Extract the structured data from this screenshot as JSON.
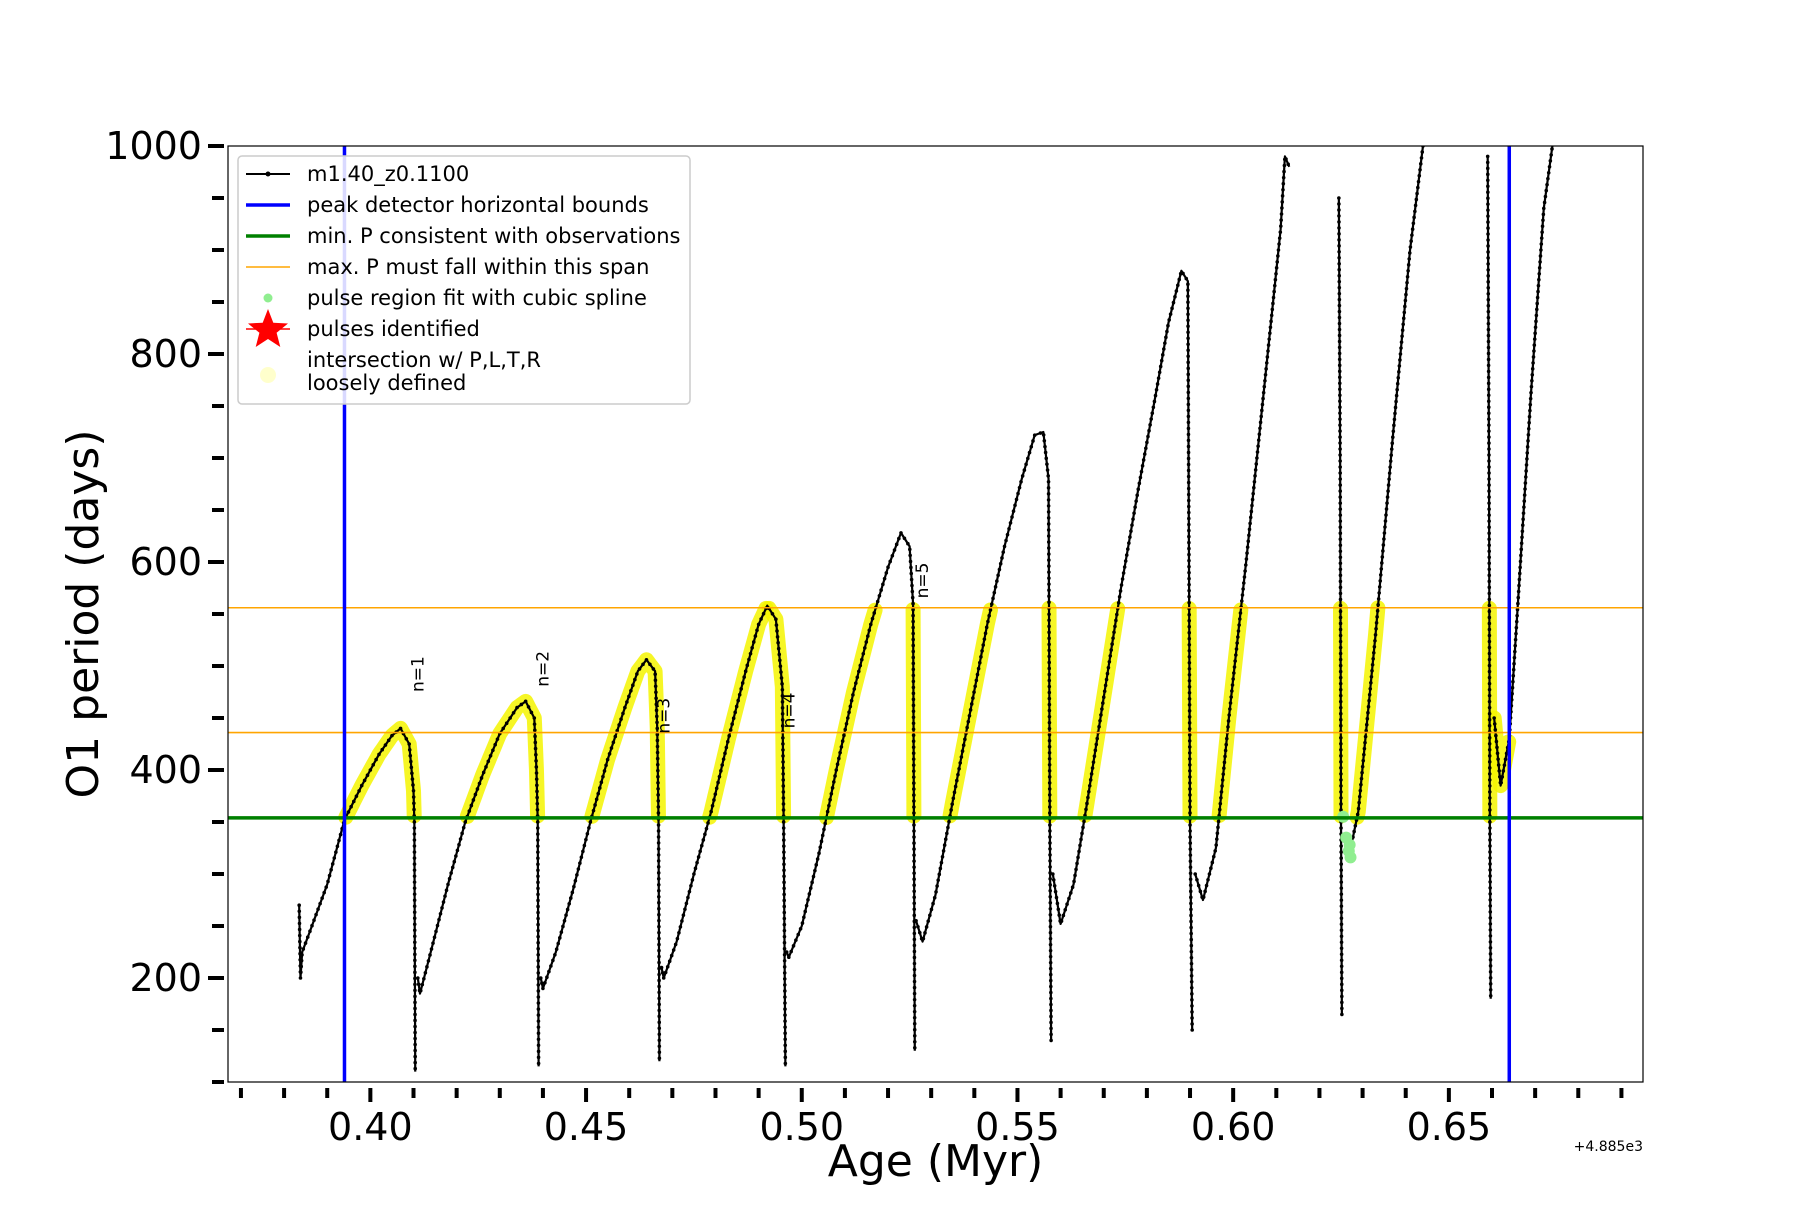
{
  "chart_data": {
    "type": "line",
    "xlabel": "Age (Myr)",
    "ylabel": "O1 period (days)",
    "x_offset_label": "+4.885e3",
    "xlim": [
      0.367,
      0.695
    ],
    "ylim": [
      100,
      1000
    ],
    "xticks": [
      {
        "value": 0.4,
        "label": "0.40"
      },
      {
        "value": 0.45,
        "label": "0.45"
      },
      {
        "value": 0.5,
        "label": "0.50"
      },
      {
        "value": 0.55,
        "label": "0.55"
      },
      {
        "value": 0.6,
        "label": "0.60"
      },
      {
        "value": 0.65,
        "label": "0.65"
      }
    ],
    "yticks": [
      {
        "value": 200,
        "label": "200"
      },
      {
        "value": 400,
        "label": "400"
      },
      {
        "value": 600,
        "label": "600"
      },
      {
        "value": 800,
        "label": "800"
      },
      {
        "value": 1000,
        "label": "1000"
      }
    ],
    "legend_position": "top-left",
    "legend": [
      {
        "label": "m1.40_z0.1100",
        "style": "line-dot",
        "color": "#000000"
      },
      {
        "label": "peak detector horizontal bounds",
        "style": "line",
        "color": "#0000ff"
      },
      {
        "label": "min. P consistent with observations",
        "style": "line",
        "color": "#008000"
      },
      {
        "label": "max. P must fall within this span",
        "style": "thin-line",
        "color": "#ffa500"
      },
      {
        "label": "pulse region fit with cubic spline",
        "style": "dot",
        "color": "#90ee90"
      },
      {
        "label": "pulses identified",
        "style": "star",
        "color": "#ff0000"
      },
      {
        "label": "intersection w/ P,L,T,R",
        "label2": "loosely defined",
        "style": "big-dot",
        "color": "#ffffcc"
      }
    ],
    "vlines": [
      0.394,
      0.664
    ],
    "min_period": 354,
    "max_period_span": [
      436,
      556
    ],
    "pulse_labels": [
      {
        "text": "n=1",
        "x": 0.41,
        "y": 475
      },
      {
        "text": "n=2",
        "x": 0.439,
        "y": 480
      },
      {
        "text": "n=3",
        "x": 0.467,
        "y": 435
      },
      {
        "text": "n=4",
        "x": 0.496,
        "y": 440
      },
      {
        "text": "n=5",
        "x": 0.527,
        "y": 565
      }
    ],
    "series": [
      {
        "name": "m1.40_z0.1100",
        "color": "#000000",
        "segments": [
          [
            [
              0.3835,
              270
            ],
            [
              0.3838,
              200
            ],
            [
              0.3842,
              225
            ],
            [
              0.386,
              245
            ],
            [
              0.39,
              290
            ],
            [
              0.394,
              352
            ],
            [
              0.398,
              385
            ],
            [
              0.402,
              415
            ],
            [
              0.405,
              433
            ],
            [
              0.407,
              440
            ],
            [
              0.409,
              425
            ],
            [
              0.41,
              380
            ],
            [
              0.4102,
              350
            ],
            [
              0.4104,
              110
            ]
          ],
          [
            [
              0.411,
              200
            ],
            [
              0.4115,
              185
            ],
            [
              0.414,
              225
            ],
            [
              0.418,
              290
            ],
            [
              0.422,
              350
            ],
            [
              0.426,
              395
            ],
            [
              0.43,
              435
            ],
            [
              0.434,
              460
            ],
            [
              0.436,
              466
            ],
            [
              0.438,
              450
            ],
            [
              0.4385,
              400
            ],
            [
              0.4388,
              350
            ],
            [
              0.439,
              115
            ]
          ],
          [
            [
              0.4395,
              200
            ],
            [
              0.44,
              190
            ],
            [
              0.443,
              225
            ],
            [
              0.447,
              285
            ],
            [
              0.451,
              350
            ],
            [
              0.455,
              410
            ],
            [
              0.459,
              460
            ],
            [
              0.462,
              495
            ],
            [
              0.464,
              506
            ],
            [
              0.466,
              495
            ],
            [
              0.4665,
              440
            ],
            [
              0.4668,
              350
            ],
            [
              0.467,
              120
            ]
          ],
          [
            [
              0.4675,
              210
            ],
            [
              0.468,
              200
            ],
            [
              0.471,
              235
            ],
            [
              0.475,
              300
            ],
            [
              0.479,
              360
            ],
            [
              0.483,
              430
            ],
            [
              0.487,
              495
            ],
            [
              0.49,
              540
            ],
            [
              0.492,
              558
            ],
            [
              0.494,
              545
            ],
            [
              0.4955,
              480
            ],
            [
              0.4958,
              350
            ],
            [
              0.4962,
              115
            ]
          ],
          [
            [
              0.4965,
              225
            ],
            [
              0.497,
              220
            ],
            [
              0.5,
              250
            ],
            [
              0.504,
              320
            ],
            [
              0.508,
              400
            ],
            [
              0.512,
              475
            ],
            [
              0.516,
              540
            ],
            [
              0.52,
              595
            ],
            [
              0.523,
              628
            ],
            [
              0.525,
              615
            ],
            [
              0.5258,
              560
            ],
            [
              0.526,
              350
            ],
            [
              0.5262,
              130
            ]
          ],
          [
            [
              0.5265,
              255
            ],
            [
              0.528,
              235
            ],
            [
              0.531,
              280
            ],
            [
              0.535,
              370
            ],
            [
              0.539,
              455
            ],
            [
              0.543,
              540
            ],
            [
              0.547,
              615
            ],
            [
              0.551,
              680
            ],
            [
              0.554,
              722
            ],
            [
              0.556,
              725
            ],
            [
              0.5572,
              680
            ],
            [
              0.5575,
              350
            ],
            [
              0.5578,
              140
            ]
          ],
          [
            [
              0.5582,
              300
            ],
            [
              0.56,
              252
            ],
            [
              0.563,
              290
            ],
            [
              0.566,
              365
            ],
            [
              0.57,
              470
            ],
            [
              0.574,
              575
            ],
            [
              0.578,
              670
            ],
            [
              0.582,
              760
            ],
            [
              0.585,
              830
            ],
            [
              0.588,
              880
            ],
            [
              0.5895,
              870
            ],
            [
              0.59,
              350
            ],
            [
              0.5905,
              150
            ]
          ],
          [
            [
              0.5912,
              300
            ],
            [
              0.593,
              275
            ],
            [
              0.596,
              325
            ],
            [
              0.599,
              450
            ],
            [
              0.603,
              600
            ],
            [
              0.607,
              760
            ],
            [
              0.611,
              920
            ],
            [
              0.612,
              990
            ],
            [
              0.613,
              980
            ]
          ],
          [
            [
              0.6245,
              950
            ],
            [
              0.6248,
              700
            ],
            [
              0.625,
              350
            ],
            [
              0.6252,
              165
            ]
          ],
          [
            [
              0.6275,
              330
            ],
            [
              0.629,
              360
            ],
            [
              0.633,
              530
            ],
            [
              0.637,
              720
            ],
            [
              0.641,
              900
            ],
            [
              0.644,
              1000
            ]
          ],
          [
            [
              0.659,
              990
            ],
            [
              0.6593,
              700
            ],
            [
              0.6595,
              350
            ],
            [
              0.6597,
              180
            ]
          ],
          [
            [
              0.6605,
              450
            ],
            [
              0.662,
              385
            ],
            [
              0.664,
              430
            ],
            [
              0.666,
              560
            ],
            [
              0.669,
              760
            ],
            [
              0.672,
              940
            ],
            [
              0.674,
              1000
            ]
          ]
        ]
      }
    ]
  }
}
